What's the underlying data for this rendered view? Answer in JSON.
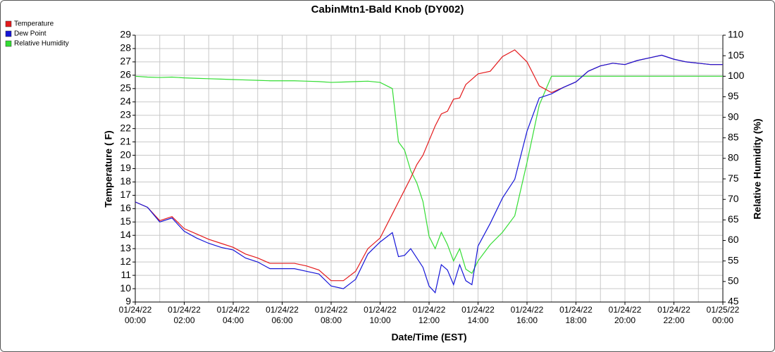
{
  "chart_data": {
    "type": "line",
    "title": "CabinMtn1-Bald Knob (DY002)",
    "x_label": "Date/Time (EST)",
    "y_label": "Temperature ( F)",
    "y2_label": "Relative Humidity (%)",
    "x": [
      "01/24/22 00:00",
      "01/24/22 00:30",
      "01/24/22 01:00",
      "01/24/22 01:30",
      "01/24/22 02:00",
      "01/24/22 02:30",
      "01/24/22 03:00",
      "01/24/22 03:30",
      "01/24/22 04:00",
      "01/24/22 04:30",
      "01/24/22 05:00",
      "01/24/22 05:30",
      "01/24/22 06:00",
      "01/24/22 06:30",
      "01/24/22 07:00",
      "01/24/22 07:30",
      "01/24/22 08:00",
      "01/24/22 08:30",
      "01/24/22 09:00",
      "01/24/22 09:30",
      "01/24/22 10:00",
      "01/24/22 10:30",
      "01/24/22 10:45",
      "01/24/22 11:00",
      "01/24/22 11:15",
      "01/24/22 11:30",
      "01/24/22 11:45",
      "01/24/22 12:00",
      "01/24/22 12:15",
      "01/24/22 12:30",
      "01/24/22 12:45",
      "01/24/22 13:00",
      "01/24/22 13:15",
      "01/24/22 13:30",
      "01/24/22 13:45",
      "01/24/22 14:00",
      "01/24/22 14:30",
      "01/24/22 15:00",
      "01/24/22 15:30",
      "01/24/22 16:00",
      "01/24/22 16:30",
      "01/24/22 17:00",
      "01/24/22 17:30",
      "01/24/22 18:00",
      "01/24/22 18:30",
      "01/24/22 19:00",
      "01/24/22 19:30",
      "01/24/22 20:00",
      "01/24/22 20:30",
      "01/24/22 21:00",
      "01/24/22 21:30",
      "01/24/22 22:00",
      "01/24/22 22:30",
      "01/24/22 23:00",
      "01/24/22 23:30",
      "01/25/22 00:00"
    ],
    "series": [
      {
        "name": "Temperature",
        "color": "#e41a1c",
        "axis": "y",
        "values": [
          16.5,
          16.1,
          15.1,
          15.4,
          14.5,
          14.1,
          13.7,
          13.4,
          13.1,
          12.6,
          12.3,
          11.9,
          11.9,
          11.9,
          11.7,
          11.4,
          10.6,
          10.6,
          11.3,
          13.0,
          13.8,
          15.6,
          16.5,
          17.4,
          18.3,
          19.3,
          20.0,
          21.1,
          22.2,
          23.1,
          23.3,
          24.2,
          24.3,
          25.3,
          25.7,
          26.1,
          26.3,
          27.4,
          27.9,
          27.0,
          25.2,
          24.7,
          25.1,
          25.5,
          26.3,
          26.7,
          26.9,
          26.8,
          27.1,
          27.3,
          27.5,
          27.2,
          27.0,
          26.9,
          26.8,
          26.8
        ]
      },
      {
        "name": "Dew Point",
        "color": "#1515d8",
        "axis": "y",
        "values": [
          16.5,
          16.1,
          15.0,
          15.3,
          14.3,
          13.8,
          13.4,
          13.1,
          12.9,
          12.3,
          12.0,
          11.5,
          11.5,
          11.5,
          11.3,
          11.1,
          10.2,
          10.0,
          10.7,
          12.6,
          13.5,
          14.2,
          12.4,
          12.5,
          13.0,
          12.3,
          11.6,
          10.2,
          9.7,
          11.8,
          11.4,
          10.3,
          11.8,
          10.6,
          10.3,
          13.2,
          14.9,
          16.8,
          18.2,
          21.8,
          24.3,
          24.6,
          25.1,
          25.5,
          26.3,
          26.7,
          26.9,
          26.8,
          27.1,
          27.3,
          27.5,
          27.2,
          27.0,
          26.9,
          26.8,
          26.8
        ]
      },
      {
        "name": "Relative Humidity",
        "color": "#33dd33",
        "axis": "y2",
        "values": [
          100,
          99.8,
          99.7,
          99.8,
          99.6,
          99.5,
          99.4,
          99.3,
          99.2,
          99.1,
          99.0,
          98.9,
          98.9,
          98.9,
          98.8,
          98.7,
          98.5,
          98.6,
          98.7,
          98.8,
          98.5,
          97,
          84,
          82,
          77,
          74,
          69.5,
          61,
          58,
          62,
          59,
          55,
          58,
          53,
          52,
          55,
          59,
          62,
          66,
          79,
          93,
          100,
          100,
          100,
          100,
          100,
          100,
          100,
          100,
          100,
          100,
          100,
          100,
          100,
          100,
          100
        ]
      }
    ],
    "xlim": [
      "01/24/22 00:00",
      "01/25/22 00:00"
    ],
    "xticks": [
      "01/24/22 00:00",
      "01/24/22 02:00",
      "01/24/22 04:00",
      "01/24/22 06:00",
      "01/24/22 08:00",
      "01/24/22 10:00",
      "01/24/22 12:00",
      "01/24/22 14:00",
      "01/24/22 16:00",
      "01/24/22 18:00",
      "01/24/22 20:00",
      "01/24/22 22:00",
      "01/25/22 00:00"
    ],
    "x_minor_ticks": [
      "01/24/22 01:00",
      "01/24/22 03:00",
      "01/24/22 05:00",
      "01/24/22 07:00",
      "01/24/22 09:00",
      "01/24/22 11:00",
      "01/24/22 13:00",
      "01/24/22 15:00",
      "01/24/22 17:00",
      "01/24/22 19:00",
      "01/24/22 21:00",
      "01/24/22 23:00"
    ],
    "ylim": [
      9,
      29
    ],
    "yticks": [
      9,
      10,
      11,
      12,
      13,
      14,
      15,
      16,
      17,
      18,
      19,
      20,
      21,
      22,
      23,
      24,
      25,
      26,
      27,
      28,
      29
    ],
    "y2lim": [
      45,
      110
    ],
    "y2ticks": [
      45,
      50,
      55,
      60,
      65,
      70,
      75,
      80,
      85,
      90,
      95,
      100,
      105,
      110
    ],
    "grid": true,
    "legend": "top-left"
  }
}
